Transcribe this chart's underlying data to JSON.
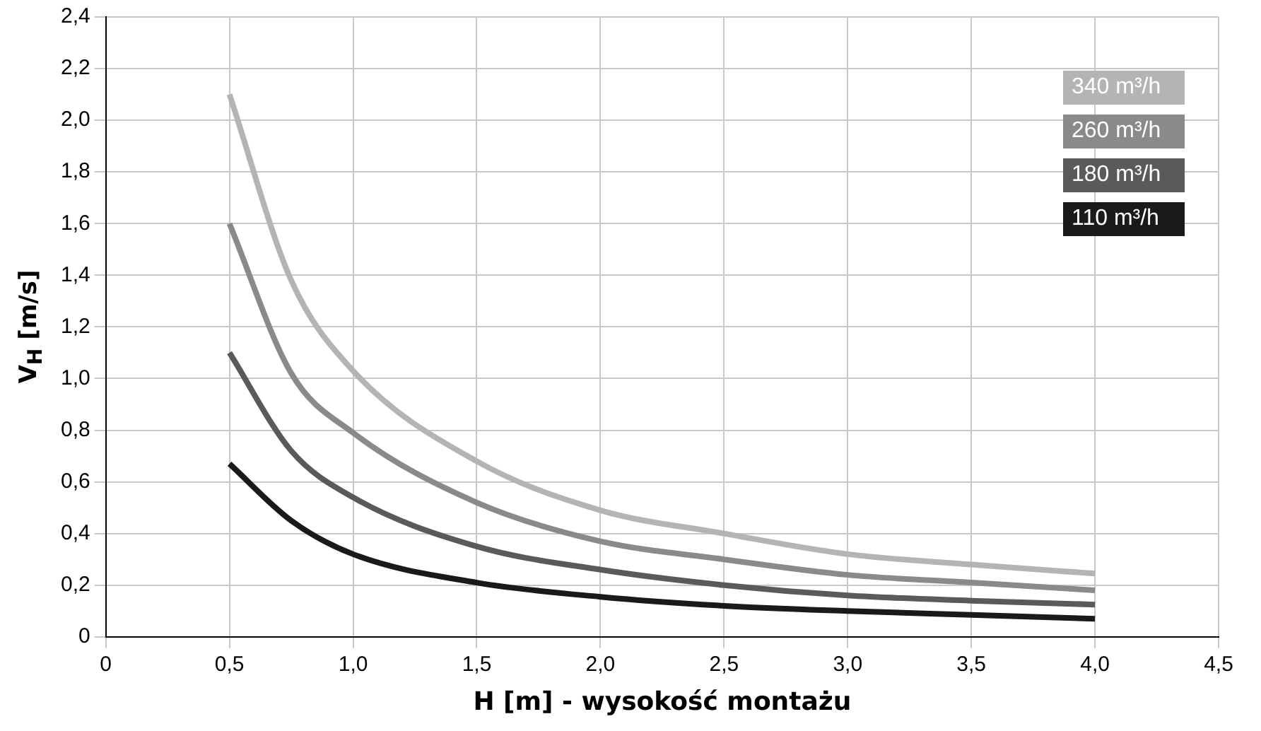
{
  "chart_data": {
    "type": "line",
    "xlabel": "H [m] - wysokość montażu",
    "ylabel": "V$_{H}$  [m/s]",
    "xlim": [
      0,
      4.5
    ],
    "xticks": [
      0,
      {
        "value": 0.5,
        "label": "0,5"
      },
      {
        "value": 1,
        "label": "1,0"
      },
      {
        "value": 1.5,
        "label": "1,5"
      },
      {
        "value": 2,
        "label": "2,0"
      },
      {
        "value": 2.5,
        "label": "2,5"
      },
      {
        "value": 3,
        "label": "3,0"
      },
      {
        "value": 3.5,
        "label": "3,5"
      },
      {
        "value": 4,
        "label": "4,0"
      },
      {
        "value": 4.5,
        "label": "4,5"
      }
    ],
    "ylim": [
      0,
      2.4
    ],
    "yticks": [
      0,
      {
        "value": 0.2,
        "label": "0,2"
      },
      {
        "value": 0.4,
        "label": "0,4"
      },
      {
        "value": 0.6,
        "label": "0,6"
      },
      {
        "value": 0.8,
        "label": "0,8"
      },
      {
        "value": 1,
        "label": "1,0"
      },
      {
        "value": 1.2,
        "label": "1,2"
      },
      {
        "value": 1.4,
        "label": "1,4"
      },
      {
        "value": 1.6,
        "label": "1,6"
      },
      {
        "value": 1.8,
        "label": "1,8"
      },
      {
        "value": 2,
        "label": "2,0"
      },
      {
        "value": 2.2,
        "label": "2,2"
      },
      {
        "value": 2.4,
        "label": "2,4"
      }
    ],
    "x": [
      0.5,
      0.75,
      1.0,
      1.5,
      2.0,
      2.5,
      3.0,
      3.5,
      4.0
    ],
    "series": [
      {
        "name": "340 m³/h",
        "color": "#b4b4b4",
        "values": [
          2.1,
          1.38,
          1.03,
          0.68,
          0.49,
          0.4,
          0.32,
          0.28,
          0.245
        ]
      },
      {
        "name": "260 m³/h",
        "color": "#8a8a8a",
        "values": [
          1.6,
          1.02,
          0.79,
          0.52,
          0.37,
          0.3,
          0.24,
          0.21,
          0.18
        ]
      },
      {
        "name": "180 m³/h",
        "color": "#5a5a5a",
        "values": [
          1.1,
          0.72,
          0.54,
          0.35,
          0.26,
          0.2,
          0.16,
          0.14,
          0.125
        ]
      },
      {
        "name": "110 m³/h",
        "color": "#1a1a1a",
        "values": [
          0.67,
          0.45,
          0.32,
          0.21,
          0.155,
          0.12,
          0.1,
          0.085,
          0.07
        ]
      }
    ],
    "grid": true,
    "legend": "top right",
    "marker": "none",
    "line_style": "solid"
  }
}
